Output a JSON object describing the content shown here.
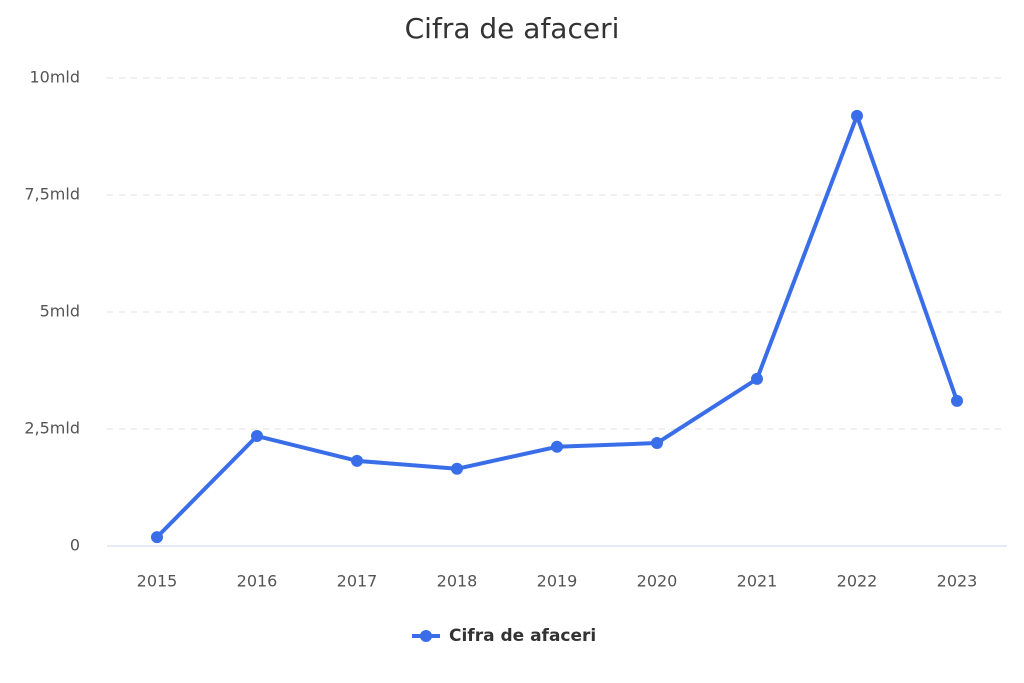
{
  "chart_data": {
    "type": "line",
    "title": "Cifra de afaceri",
    "categories": [
      "2015",
      "2016",
      "2017",
      "2018",
      "2019",
      "2020",
      "2021",
      "2022",
      "2023"
    ],
    "series": [
      {
        "name": "Cifra de afaceri",
        "color": "#3a6ee8",
        "values": [
          0.19,
          2.35,
          1.82,
          1.65,
          2.12,
          2.2,
          3.57,
          9.19,
          3.1
        ]
      }
    ],
    "ylim": [
      0,
      10
    ],
    "yticks": [
      0,
      {
        "value": 2.5,
        "label": "2,5mld"
      },
      {
        "value": 5,
        "label": "5mld"
      },
      {
        "value": 7.5,
        "label": "7,5mld"
      },
      {
        "value": 10,
        "label": "10mld"
      }
    ],
    "grid": true
  }
}
